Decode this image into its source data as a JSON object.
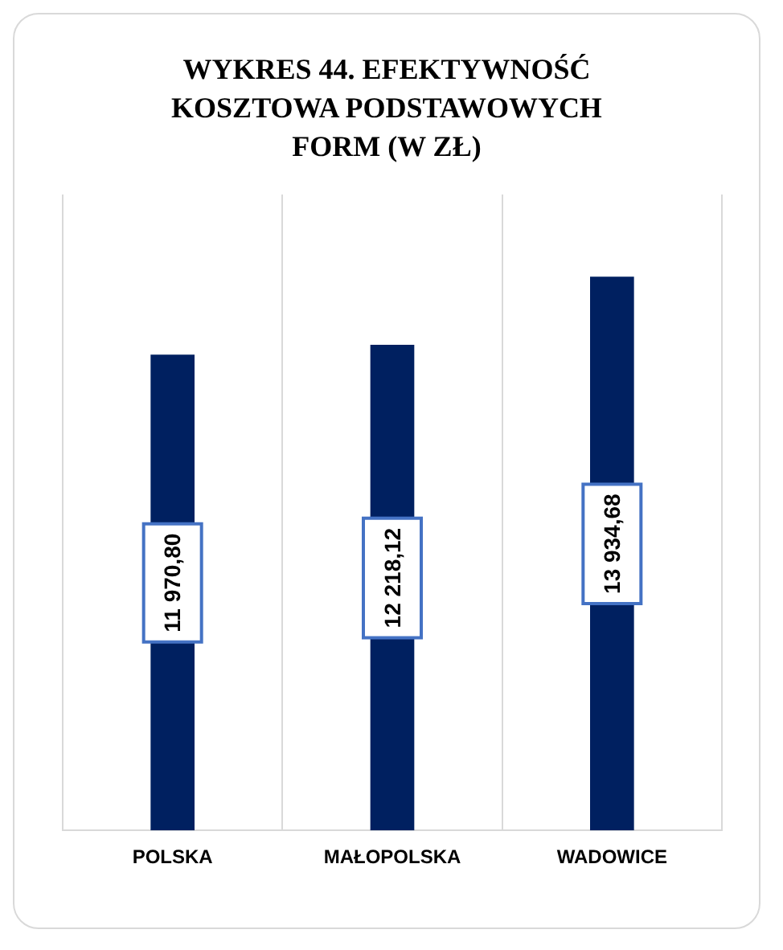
{
  "chart_data": {
    "type": "bar",
    "title": "WYKRES 44. EFEKTYWNOŚĆ KOSZTOWA PODSTAWOWYCH FORM (W ZŁ)",
    "categories": [
      "POLSKA",
      "MAŁOPOLSKA",
      "WADOWICE"
    ],
    "values": [
      11970.8,
      12218.12,
      13934.68
    ],
    "value_labels": [
      "11 970,80",
      "12 218,12",
      "13 934,68"
    ],
    "color": "#002060",
    "ylim": [
      0,
      16000
    ],
    "grid": "x"
  }
}
